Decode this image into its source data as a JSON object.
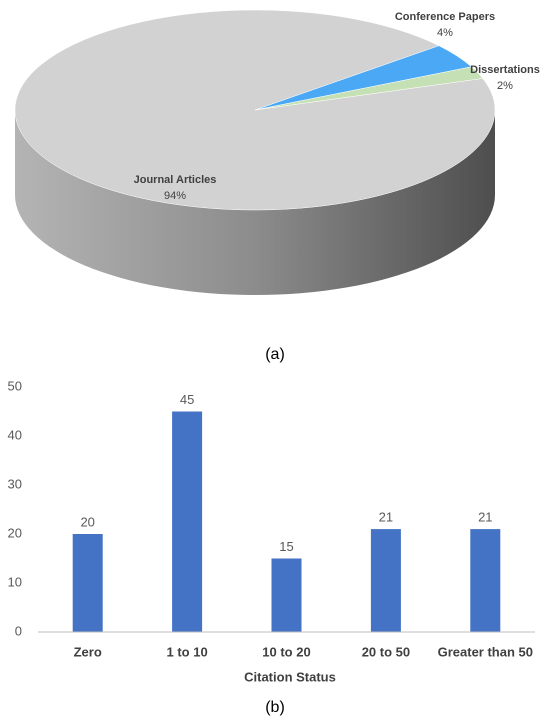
{
  "chart_data": [
    {
      "type": "pie",
      "caption": "(a)",
      "categories": [
        "Journal Articles",
        "Conference Papers",
        "Dissertations"
      ],
      "values": [
        94,
        4,
        2
      ],
      "value_labels": [
        "94%",
        "4%",
        "2%"
      ],
      "colors": [
        "#d2d2d2",
        "#4aa8f5",
        "#c5e0b4"
      ]
    },
    {
      "type": "bar",
      "caption": "(b)",
      "x_label": "Citation Status",
      "categories": [
        "Zero",
        "1 to 10",
        "10 to 20",
        "20 to 50",
        "Greater than 50"
      ],
      "values": [
        20,
        45,
        15,
        21,
        21
      ],
      "color": "#4472c4",
      "ylim": [
        0,
        50
      ],
      "yticks": [
        0,
        10,
        20,
        30,
        40,
        50
      ],
      "grid": false
    }
  ]
}
